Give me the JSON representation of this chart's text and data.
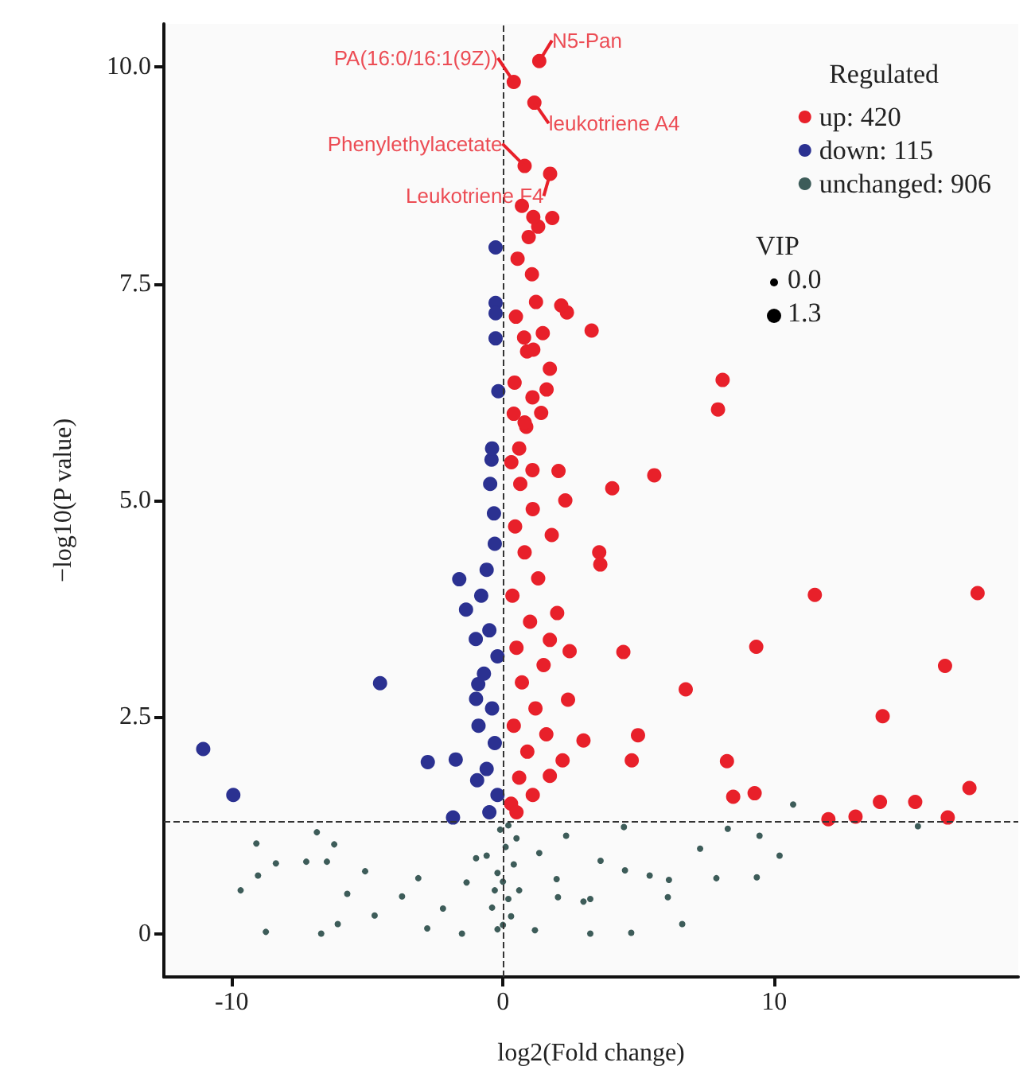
{
  "chart_data": {
    "type": "scatter",
    "xlabel": "log2(Fold change)",
    "ylabel": "−log10(P value)",
    "legend_title": "Regulated",
    "legend": "top right",
    "xlim": [
      -12.5,
      19
    ],
    "xticks": [
      -10,
      0,
      10
    ],
    "ylim": [
      -0.5,
      10.5
    ],
    "yticks": [
      0,
      2.5,
      {
        "value": 5,
        "label": "5.0"
      },
      7.5,
      {
        "value": 10,
        "label": "10.0"
      }
    ],
    "grid": false,
    "ref_lines": [
      {
        "axis": "x",
        "value": 0,
        "line_style": "dashed",
        "color": "#333333"
      },
      {
        "axis": "y",
        "value": 1.3,
        "line_style": "dashed",
        "color": "#333333"
      }
    ],
    "annotations": [
      {
        "text": "N5-Pan",
        "x": 1.34,
        "y": 10.07
      },
      {
        "text": "PA(16:0/16:1(9Z))",
        "x": 0.4,
        "y": 9.83
      },
      {
        "text": "leukotriene A4",
        "x": 1.16,
        "y": 9.59
      },
      {
        "text": "Phenylethylacetate",
        "x": 0.8,
        "y": 8.86
      },
      {
        "text": "Leukotriene F4",
        "x": 1.74,
        "y": 8.77
      },
      "VIP",
      "0.0",
      "1.3"
    ],
    "series": [
      {
        "name": "up: 420",
        "color": "#e8202a",
        "x": [
          1.34,
          0.4,
          1.16,
          0.8,
          1.74,
          11.5,
          17.5,
          9.34,
          16.3,
          6.74,
          14.0,
          4.98,
          2.97,
          4.75,
          8.26,
          1.73,
          8.49,
          9.28,
          17.2,
          13.9,
          15.2,
          12.0,
          13.0,
          16.4,
          4.44,
          2.46,
          1.73,
          3.55,
          3.59,
          8.1,
          7.93,
          5.58,
          4.03,
          3.27,
          2.36,
          2.15,
          1.22,
          0.48,
          0.78,
          1.47,
          0.89,
          1.12,
          1.73,
          0.43,
          1.61,
          1.09,
          1.41,
          0.86,
          0.54,
          1.07,
          0.95,
          1.3,
          1.82,
          1.12,
          0.7,
          2.05,
          1.09,
          0.31,
          0.64,
          0.3,
          0.6,
          0.9,
          0.4,
          1.2,
          0.7,
          1.5,
          0.5,
          1.0,
          0.35,
          1.3,
          0.8,
          0.45,
          1.1,
          0.6,
          2.2,
          2.4,
          2.0,
          1.8,
          2.3,
          0.5,
          1.1,
          0.8,
          1.6,
          0.4
        ],
        "values": [
          10.07,
          9.83,
          9.59,
          8.86,
          8.77,
          3.91,
          3.93,
          3.31,
          3.09,
          2.82,
          2.51,
          2.29,
          2.23,
          2.0,
          1.99,
          1.82,
          1.58,
          1.62,
          1.68,
          1.52,
          1.52,
          1.32,
          1.35,
          1.34,
          3.25,
          3.26,
          3.39,
          4.4,
          4.26,
          6.39,
          6.05,
          5.29,
          5.14,
          6.96,
          7.17,
          7.25,
          7.29,
          7.12,
          6.88,
          6.93,
          6.72,
          6.74,
          6.52,
          6.36,
          6.28,
          6.19,
          6.01,
          5.85,
          7.79,
          7.61,
          8.04,
          8.16,
          8.26,
          8.27,
          8.4,
          5.34,
          5.35,
          5.44,
          5.19,
          1.5,
          1.8,
          2.1,
          2.4,
          2.6,
          2.9,
          3.1,
          3.3,
          3.6,
          3.9,
          4.1,
          4.4,
          4.7,
          4.9,
          5.6,
          2.0,
          2.7,
          3.7,
          4.6,
          5.0,
          1.4,
          1.6,
          5.9,
          2.3,
          6.0
        ]
      },
      {
        "name": "down: 115",
        "color": "#2b3191",
        "x": [
          -11.05,
          -9.94,
          -4.53,
          -2.77,
          -1.74,
          -1.84,
          -1.61,
          -1.36,
          -0.91,
          -0.99,
          -0.95,
          -0.27,
          -0.27,
          -0.27,
          -0.27,
          -0.17,
          -0.42,
          -0.47,
          -0.33,
          -0.3,
          -0.6,
          -0.8,
          -0.5,
          -0.2,
          -0.7,
          -0.4,
          -0.9,
          -0.3,
          -0.6,
          -0.2,
          -0.5,
          -1.0,
          -0.4
        ],
        "values": [
          2.13,
          1.6,
          2.89,
          1.98,
          2.01,
          1.34,
          4.09,
          3.74,
          2.88,
          2.71,
          1.77,
          7.92,
          7.28,
          7.16,
          6.87,
          6.26,
          5.47,
          5.19,
          4.85,
          4.5,
          4.2,
          3.9,
          3.5,
          3.2,
          3.0,
          2.6,
          2.4,
          2.2,
          1.9,
          1.6,
          1.4,
          3.4,
          5.6
        ]
      },
      {
        "name": "unchanged: 906",
        "color": "#3d5c59",
        "x": [
          -9.09,
          -9.03,
          -9.67,
          -8.74,
          -8.37,
          -6.86,
          -7.25,
          -6.22,
          -6.49,
          -5.74,
          -6.7,
          -6.09,
          -5.08,
          -4.73,
          -3.72,
          -3.12,
          -2.79,
          -2.21,
          -1.34,
          -1.51,
          -0.99,
          10.7,
          15.3,
          10.2,
          9.46,
          7.27,
          7.87,
          9.36,
          8.29,
          6.61,
          6.08,
          6.12,
          5.41,
          4.5,
          3.6,
          3.22,
          2.97,
          3.22,
          4.73,
          2.03,
          1.98,
          1.18,
          1.34,
          2.33,
          4.46,
          0.0,
          0.2,
          -0.2,
          0.1,
          -0.1,
          0.3,
          -0.3,
          0.4,
          0.5,
          -0.4,
          0.0,
          0.2,
          -0.2,
          0.6,
          -0.6
        ],
        "values": [
          1.04,
          0.67,
          0.5,
          0.02,
          0.81,
          1.17,
          0.83,
          1.03,
          0.83,
          0.46,
          0.0,
          0.11,
          0.72,
          0.21,
          0.43,
          0.64,
          0.06,
          0.29,
          0.59,
          0.0,
          0.87,
          1.49,
          1.24,
          0.9,
          1.13,
          0.98,
          0.64,
          0.65,
          1.21,
          0.11,
          0.42,
          0.62,
          0.67,
          0.73,
          0.84,
          0.4,
          0.37,
          0.0,
          0.01,
          0.42,
          0.63,
          0.04,
          0.93,
          1.13,
          1.23,
          0.1,
          0.4,
          0.7,
          1.0,
          1.2,
          0.2,
          0.5,
          0.8,
          1.1,
          0.3,
          0.6,
          1.25,
          0.05,
          0.5,
          0.9
        ]
      }
    ]
  }
}
